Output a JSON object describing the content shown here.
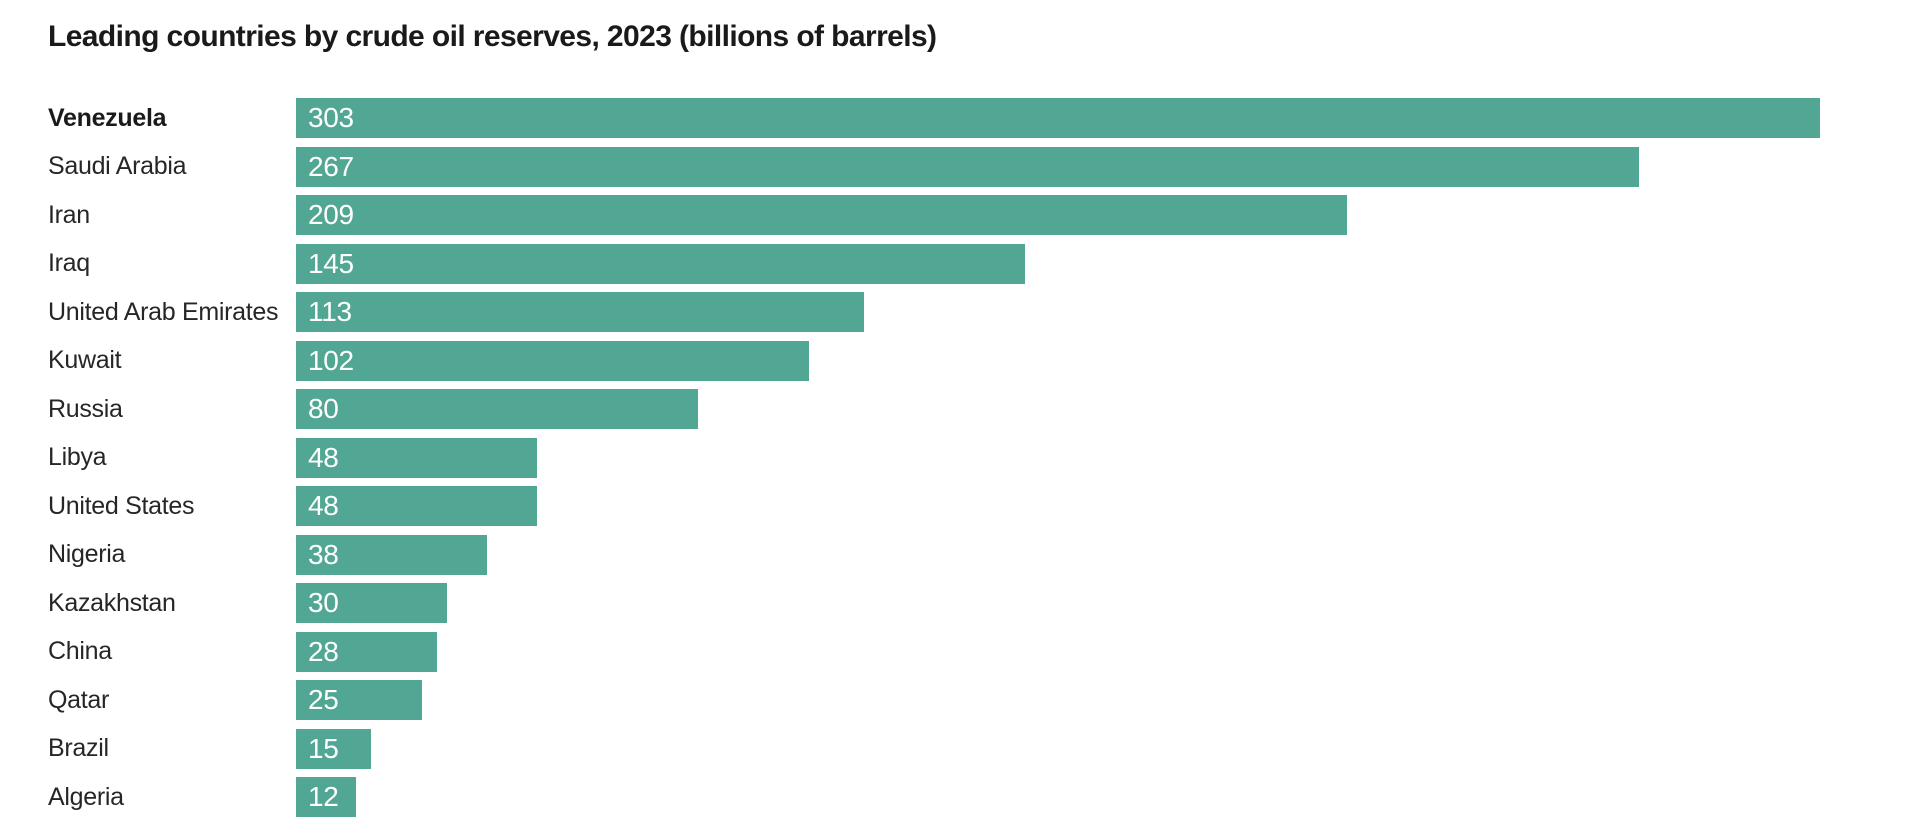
{
  "chart_data": {
    "type": "bar",
    "orientation": "horizontal",
    "title": "Leading countries by crude oil reserves, 2023 (billions of barrels)",
    "categories": [
      "Venezuela",
      "Saudi Arabia",
      "Iran",
      "Iraq",
      "United Arab Emirates",
      "Kuwait",
      "Russia",
      "Libya",
      "United States",
      "Nigeria",
      "Kazakhstan",
      "China",
      "Qatar",
      "Brazil",
      "Algeria"
    ],
    "values": [
      303,
      267,
      209,
      145,
      113,
      102,
      80,
      48,
      48,
      38,
      30,
      28,
      25,
      15,
      12
    ],
    "xlim": [
      0,
      323
    ],
    "grid": false,
    "legend": false,
    "value_label_position": "inside-start",
    "bar_color": "#52a794",
    "value_label_color": "#ffffff",
    "category_label_color": "#262626",
    "title_color": "#1a1a1a",
    "background_color": "#ffffff",
    "emphasized_category": "Venezuela"
  }
}
